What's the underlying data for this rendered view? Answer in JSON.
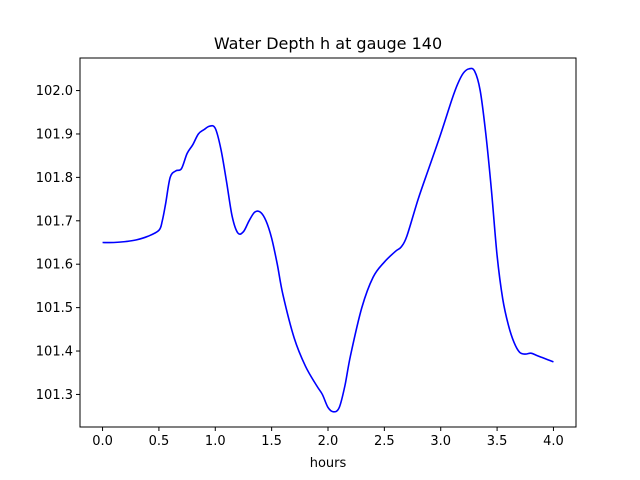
{
  "chart_data": {
    "type": "line",
    "title": "Water Depth h at gauge 140",
    "xlabel": "hours",
    "ylabel": "",
    "xlim": [
      -0.2,
      4.2
    ],
    "ylim": [
      101.225,
      102.075
    ],
    "xticks": [
      0.0,
      0.5,
      1.0,
      1.5,
      2.0,
      2.5,
      3.0,
      3.5,
      4.0
    ],
    "xtick_labels": [
      "0.0",
      "0.5",
      "1.0",
      "1.5",
      "2.0",
      "2.5",
      "3.0",
      "3.5",
      "4.0"
    ],
    "yticks": [
      101.3,
      101.4,
      101.5,
      101.6,
      101.7,
      101.8,
      101.9,
      102.0
    ],
    "ytick_labels": [
      "101.3",
      "101.4",
      "101.5",
      "101.6",
      "101.7",
      "101.8",
      "101.9",
      "102.0"
    ],
    "grid": false,
    "series": [
      {
        "color": "#0000ff",
        "x": [
          0.0,
          0.1,
          0.2,
          0.3,
          0.4,
          0.5,
          0.53,
          0.56,
          0.6,
          0.65,
          0.7,
          0.75,
          0.8,
          0.85,
          0.9,
          0.95,
          1.0,
          1.05,
          1.1,
          1.15,
          1.2,
          1.25,
          1.3,
          1.35,
          1.4,
          1.45,
          1.5,
          1.55,
          1.6,
          1.7,
          1.8,
          1.9,
          1.95,
          2.0,
          2.05,
          2.1,
          2.15,
          2.2,
          2.3,
          2.4,
          2.5,
          2.6,
          2.65,
          2.7,
          2.8,
          2.9,
          3.0,
          3.1,
          3.15,
          3.2,
          3.25,
          3.3,
          3.35,
          3.4,
          3.45,
          3.5,
          3.55,
          3.6,
          3.65,
          3.7,
          3.75,
          3.8,
          3.85,
          3.9,
          3.95,
          4.0
        ],
        "y": [
          101.65,
          101.65,
          101.652,
          101.656,
          101.664,
          101.678,
          101.7,
          101.74,
          101.8,
          101.815,
          101.82,
          101.855,
          101.875,
          101.9,
          101.91,
          101.918,
          101.913,
          101.865,
          101.79,
          101.71,
          101.672,
          101.675,
          101.7,
          101.72,
          101.72,
          101.7,
          101.66,
          101.6,
          101.53,
          101.43,
          101.365,
          101.32,
          101.3,
          101.27,
          101.26,
          101.27,
          101.32,
          101.39,
          101.5,
          101.57,
          101.605,
          101.63,
          101.64,
          101.665,
          101.75,
          101.825,
          101.9,
          101.98,
          102.015,
          102.04,
          102.05,
          102.045,
          102.0,
          101.9,
          101.77,
          101.62,
          101.52,
          101.46,
          101.42,
          101.397,
          101.393,
          101.395,
          101.39,
          101.385,
          101.38,
          101.375
        ]
      }
    ]
  }
}
